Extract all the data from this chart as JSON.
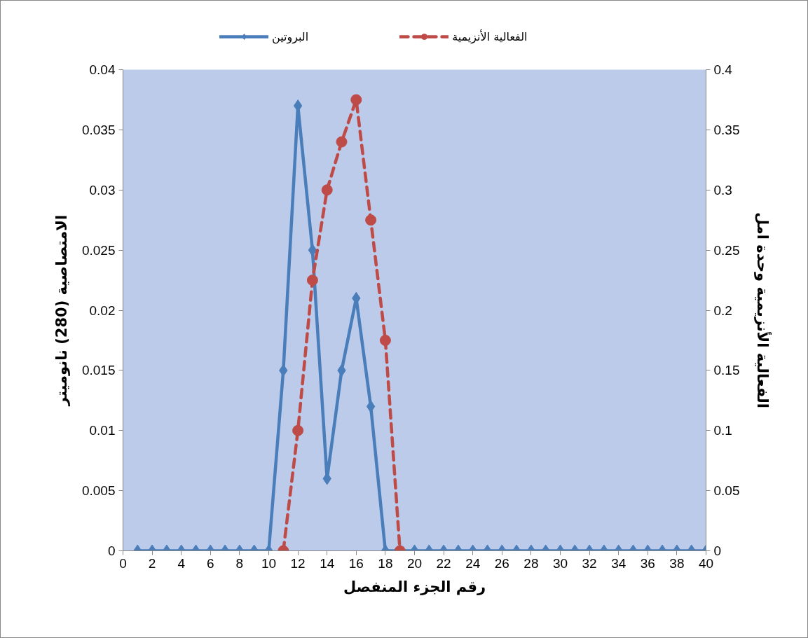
{
  "chart_data": {
    "type": "line",
    "xlabel": "رقم الجزء المنفصل",
    "ylabel": "الامتصاصية (280) نانوميتر",
    "y2label": "الفعالية الأنزيمية وحدة امل",
    "xlim": [
      0,
      40
    ],
    "xticks": [
      0,
      2,
      4,
      6,
      8,
      10,
      12,
      14,
      16,
      18,
      20,
      22,
      24,
      26,
      28,
      30,
      32,
      34,
      36,
      38,
      40
    ],
    "ylim": [
      0,
      0.04
    ],
    "yticks": [
      0,
      0.005,
      0.01,
      0.015,
      0.02,
      0.025,
      0.03,
      0.035,
      0.04
    ],
    "y2lim": [
      0,
      0.4
    ],
    "y2ticks": [
      0,
      0.05,
      0.1,
      0.15,
      0.2,
      0.25,
      0.3,
      0.35,
      0.4
    ],
    "grid": false,
    "legend": "top",
    "series": [
      {
        "name": "البروتين",
        "color": "#4a7ebb",
        "marker": "diamond",
        "line_style": "solid",
        "x": [
          1,
          2,
          3,
          4,
          5,
          6,
          7,
          8,
          9,
          10,
          11,
          12,
          13,
          14,
          15,
          16,
          17,
          18,
          19,
          20,
          21,
          22,
          23,
          24,
          25,
          26,
          27,
          28,
          29,
          30,
          31,
          32,
          33,
          34,
          35,
          36,
          37,
          38,
          39,
          40
        ],
        "values": [
          0,
          0,
          0,
          0,
          0,
          0,
          0,
          0,
          0,
          0,
          0.015,
          0.037,
          0.025,
          0.006,
          0.015,
          0.021,
          0.012,
          0,
          0,
          0,
          0,
          0,
          0,
          0,
          0,
          0,
          0,
          0,
          0,
          0,
          0,
          0,
          0,
          0,
          0,
          0,
          0,
          0,
          0,
          0
        ]
      },
      {
        "name": "الفعالية الأنزيمية",
        "color": "#be4b48",
        "marker": "circle",
        "line_style": "dashed",
        "axis": "y2",
        "x": [
          11,
          12,
          13,
          14,
          15,
          16,
          17,
          18,
          19
        ],
        "values": [
          0,
          0.1,
          0.225,
          0.3,
          0.34,
          0.375,
          0.275,
          0.175,
          0
        ]
      }
    ]
  }
}
